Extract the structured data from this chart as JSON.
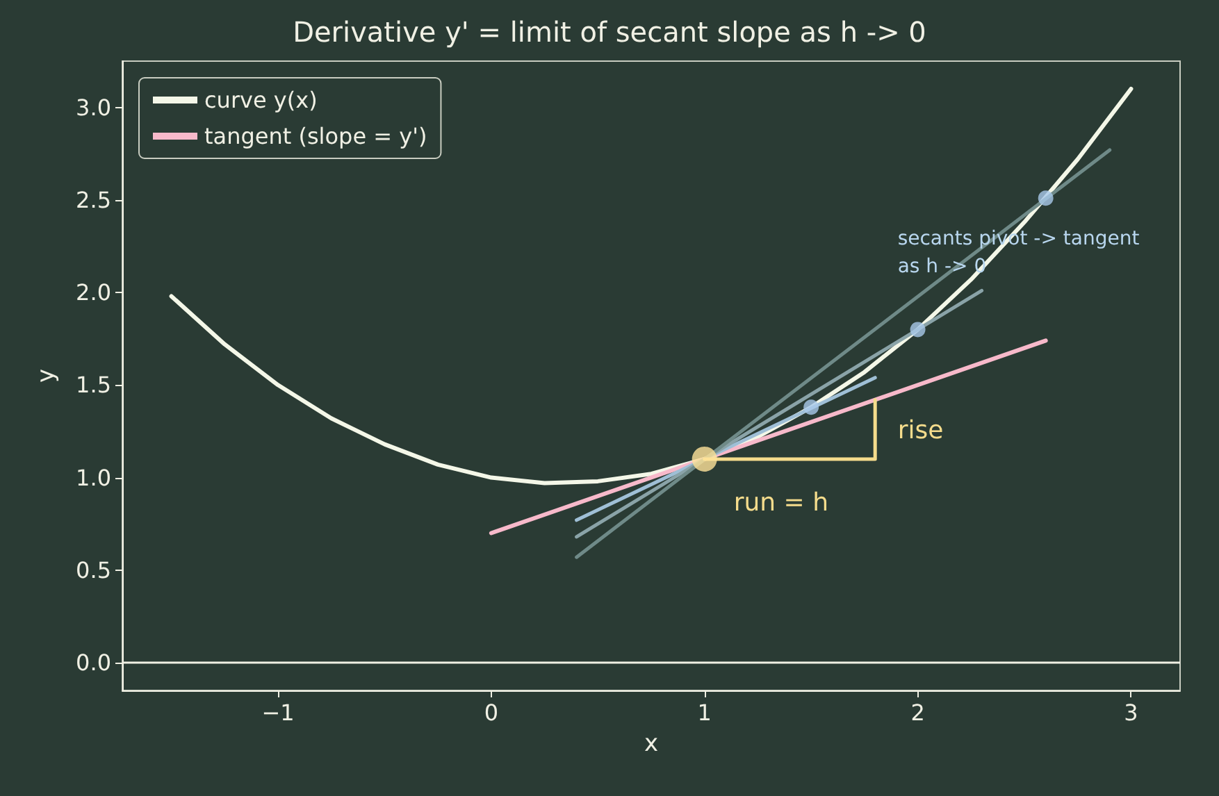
{
  "chart_data": {
    "type": "line",
    "title": "Derivative y' = limit of secant slope as h -> 0",
    "xlabel": "x",
    "ylabel": "y",
    "xlim": [
      -1.73,
      3.23
    ],
    "ylim": [
      -0.15,
      3.25
    ],
    "xticks": [
      {
        "value": -1,
        "label": "−1"
      },
      0,
      1,
      2,
      3
    ],
    "yticks": [
      {
        "value": 0,
        "label": "0.0"
      },
      0.5,
      {
        "value": 1,
        "label": "1.0"
      },
      1.5,
      {
        "value": 2,
        "label": "2.0"
      },
      2.5,
      {
        "value": 3,
        "label": "3.0"
      }
    ],
    "grid": false,
    "legend": "top left",
    "marker": "none",
    "line_style": "solid",
    "series": [
      {
        "name": "curve y(x)",
        "color": "#f4f7e8",
        "x": [
          -1.5,
          -1.25,
          -1,
          -0.75,
          -0.5,
          -0.25,
          0,
          0.25,
          0.5,
          0.75,
          1,
          1.25,
          1.5,
          1.75,
          2,
          2.25,
          2.5,
          2.75,
          3
        ],
        "values": [
          1.98,
          1.72,
          1.5,
          1.32,
          1.18,
          1.07,
          1.0,
          0.97,
          0.98,
          1.02,
          1.1,
          1.22,
          1.38,
          1.57,
          1.8,
          2.07,
          2.38,
          2.72,
          3.1
        ]
      },
      {
        "name": "tangent (slope = y')",
        "color": "#f7b9ca",
        "x": [
          0,
          2.6
        ],
        "values": [
          0.7,
          1.74
        ]
      },
      {
        "color": "#9fbfd6",
        "x": [
          0.4,
          1.8
        ],
        "values": [
          0.77,
          1.54
        ]
      },
      {
        "color": "#8aa3a8",
        "x": [
          0.4,
          2.3
        ],
        "values": [
          0.68,
          2.01
        ]
      },
      {
        "color": "#6f8a88",
        "x": [
          0.4,
          2.9
        ],
        "values": [
          0.57,
          2.77
        ]
      },
      {
        "color": "#f5dc8c",
        "x": [
          1,
          1.8,
          1.8
        ],
        "values": [
          1.1,
          1.1,
          1.42
        ]
      },
      {
        "type": "scatter",
        "marker": "circle",
        "color": "#a9c9ea",
        "x": [
          1.5,
          2,
          2.6
        ],
        "values": [
          1.38,
          1.8,
          2.51
        ]
      },
      {
        "type": "scatter",
        "marker": "circle",
        "color": "#ffe39a",
        "x": [
          1
        ],
        "values": [
          1.1
        ]
      }
    ],
    "ref_lines": [
      {
        "axis": "y",
        "value": 0,
        "color": "#f0f0e4"
      }
    ],
    "annotations": [
      "run = h",
      "rise",
      "secants pivot -> tangent\nas h -> 0"
    ]
  }
}
